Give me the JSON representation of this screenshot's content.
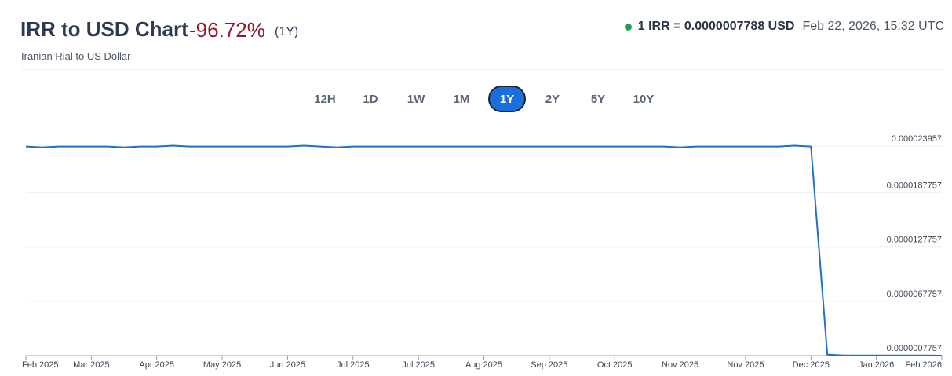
{
  "header": {
    "title": "IRR to USD Chart",
    "change": "-96.72%",
    "period": "(1Y)",
    "subtitle": "Iranian Rial to US Dollar",
    "rate": "1 IRR = 0.0000007788 USD",
    "timestamp": "Feb 22, 2026, 15:32 UTC"
  },
  "range_buttons": {
    "labels": [
      "12H",
      "1D",
      "1W",
      "1M",
      "1Y",
      "2Y",
      "5Y",
      "10Y"
    ],
    "active": "1Y"
  },
  "chart_data": {
    "type": "line",
    "color": "#1f6fc8",
    "grid": true,
    "categories": [
      "Feb 2025",
      null,
      null,
      null,
      "Mar 2025",
      null,
      null,
      null,
      "Apr 2025",
      null,
      null,
      null,
      "May 2025",
      null,
      null,
      null,
      "Jun 2025",
      null,
      null,
      null,
      "Jul 2025",
      null,
      null,
      null,
      "Jul 2025",
      null,
      null,
      null,
      "Aug 2025",
      null,
      null,
      null,
      "Sep 2025",
      null,
      null,
      null,
      "Oct 2025",
      null,
      null,
      null,
      "Nov 2025",
      null,
      null,
      null,
      "Nov 2025",
      null,
      null,
      null,
      "Dec 2025",
      null,
      null,
      null,
      "Jan 2026",
      null,
      null,
      null,
      "Feb 2026"
    ],
    "values": [
      2.39e-05,
      2.38e-05,
      2.39e-05,
      2.39e-05,
      2.39e-05,
      2.39e-05,
      2.38e-05,
      2.39e-05,
      2.39e-05,
      2.4e-05,
      2.39e-05,
      2.39e-05,
      2.39e-05,
      2.39e-05,
      2.39e-05,
      2.39e-05,
      2.39e-05,
      2.4e-05,
      2.39e-05,
      2.38e-05,
      2.39e-05,
      2.39e-05,
      2.39e-05,
      2.39e-05,
      2.39e-05,
      2.39e-05,
      2.39e-05,
      2.39e-05,
      2.39e-05,
      2.39e-05,
      2.39e-05,
      2.39e-05,
      2.39e-05,
      2.39e-05,
      2.39e-05,
      2.39e-05,
      2.39e-05,
      2.39e-05,
      2.39e-05,
      2.39e-05,
      2.38e-05,
      2.39e-05,
      2.39e-05,
      2.39e-05,
      2.39e-05,
      2.39e-05,
      2.39e-05,
      2.4e-05,
      2.39e-05,
      9e-07,
      8e-07,
      8e-07,
      8e-07,
      8e-07,
      8e-07,
      8e-07,
      7.788e-07
    ],
    "ylim": [
      7.757e-07,
      2.3957e-05
    ],
    "yticks": [
      {
        "value": 7.757e-07,
        "label": "0.0000007757"
      },
      6.7757e-06,
      1.27757e-05,
      1.87757e-05,
      2.3957e-05
    ]
  }
}
